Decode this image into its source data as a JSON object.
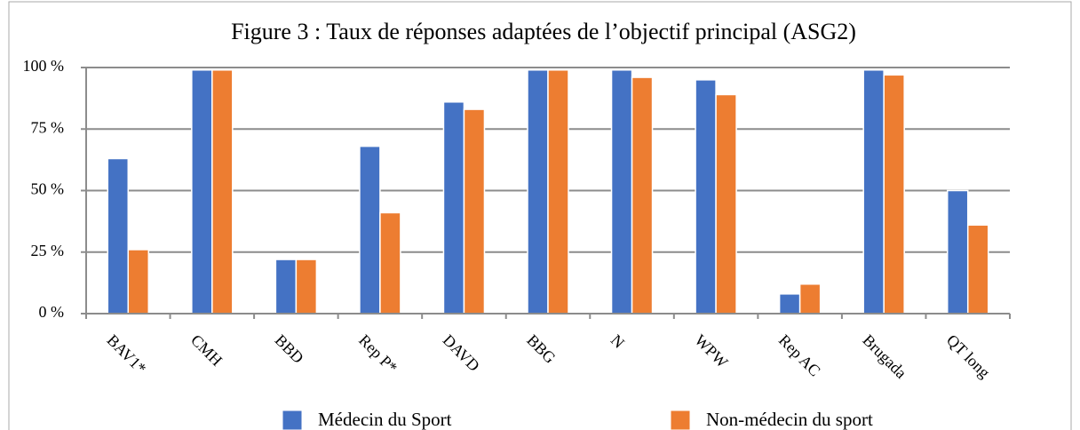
{
  "chart_data": {
    "type": "bar",
    "title": "Figure 3 : Taux de réponses adaptées de l’objectif principal (ASG2)",
    "categories": [
      "BAV1*",
      "CMH",
      "BBD",
      "Rep P*",
      "DAVD",
      "BBG",
      "N",
      "WPW",
      "Rep AC",
      "Brugada",
      "QT long"
    ],
    "series": [
      {
        "name": "Médecin du Sport",
        "color": "#4472c4",
        "values": [
          63,
          99,
          22,
          68,
          86,
          99,
          99,
          95,
          8,
          99,
          50
        ]
      },
      {
        "name": "Non-médecin du sport",
        "color": "#ed7d31",
        "values": [
          26,
          99,
          22,
          41,
          83,
          99,
          96,
          89,
          12,
          97,
          36
        ]
      }
    ],
    "ylim": [
      0,
      100
    ],
    "yticks": [
      {
        "value": 0,
        "label": "0 %"
      },
      {
        "value": 25,
        "label": "25 %"
      },
      {
        "value": 50,
        "label": "50 %"
      },
      {
        "value": 75,
        "label": "75 %"
      },
      {
        "value": 100,
        "label": "100 %"
      }
    ],
    "grid": true
  }
}
